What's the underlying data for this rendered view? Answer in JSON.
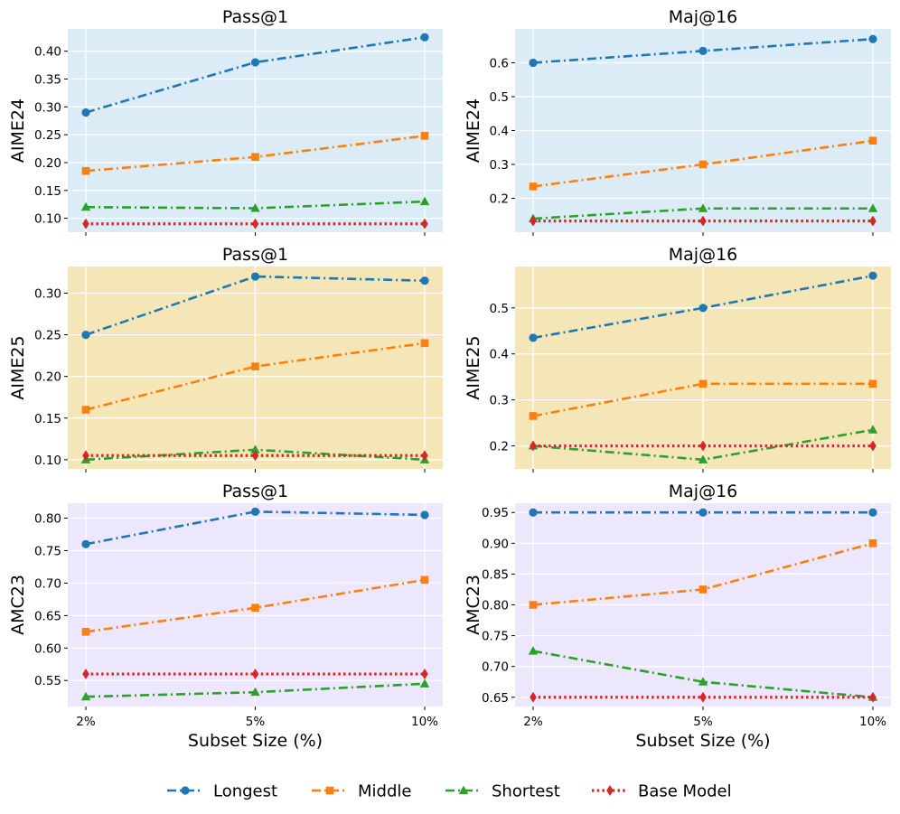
{
  "chart_data": {
    "type": "line",
    "x_categories": [
      "2%",
      "5%",
      "10%"
    ],
    "xlabel": "Subset Size (%)",
    "series_names": [
      "Longest",
      "Middle",
      "Shortest",
      "Base Model"
    ],
    "colors": {
      "Longest": "#1f77b4",
      "Middle": "#ff7f0e",
      "Shortest": "#2ca02c",
      "Base Model": "#d62728"
    },
    "markers": {
      "Longest": "circle",
      "Middle": "square",
      "Shortest": "triangle",
      "Base Model": "diamond"
    },
    "rows": [
      {
        "ylabel": "AIME24",
        "background": "#dbecf6"
      },
      {
        "ylabel": "AIME25",
        "background": "#f5e6b8"
      },
      {
        "ylabel": "AMC23",
        "background": "#ece7fd"
      }
    ],
    "panels": [
      {
        "title": "Pass@1",
        "ylabel": "AIME24",
        "ylim": [
          0.075,
          0.44
        ],
        "yticks": [
          0.1,
          0.15,
          0.2,
          0.25,
          0.3,
          0.35,
          0.4
        ],
        "ytick_labels": [
          "0.10",
          "0.15",
          "0.20",
          "0.25",
          "0.30",
          "0.35",
          "0.40"
        ],
        "series": [
          {
            "name": "Longest",
            "values": [
              0.29,
              0.38,
              0.425
            ]
          },
          {
            "name": "Middle",
            "values": [
              0.185,
              0.21,
              0.248
            ]
          },
          {
            "name": "Shortest",
            "values": [
              0.12,
              0.118,
              0.13
            ]
          },
          {
            "name": "Base Model",
            "values": [
              0.09,
              0.09,
              0.09
            ]
          }
        ]
      },
      {
        "title": "Maj@16",
        "ylabel": "AIME24",
        "ylim": [
          0.1,
          0.7
        ],
        "yticks": [
          0.2,
          0.3,
          0.4,
          0.5,
          0.6
        ],
        "ytick_labels": [
          "0.2",
          "0.3",
          "0.4",
          "0.5",
          "0.6"
        ],
        "series": [
          {
            "name": "Longest",
            "values": [
              0.6,
              0.635,
              0.67
            ]
          },
          {
            "name": "Middle",
            "values": [
              0.235,
              0.3,
              0.37
            ]
          },
          {
            "name": "Shortest",
            "values": [
              0.14,
              0.17,
              0.17
            ]
          },
          {
            "name": "Base Model",
            "values": [
              0.133,
              0.133,
              0.133
            ]
          }
        ]
      },
      {
        "title": "Pass@1",
        "ylabel": "AIME25",
        "ylim": [
          0.089,
          0.332
        ],
        "yticks": [
          0.1,
          0.15,
          0.2,
          0.25,
          0.3
        ],
        "ytick_labels": [
          "0.10",
          "0.15",
          "0.20",
          "0.25",
          "0.30"
        ],
        "series": [
          {
            "name": "Longest",
            "values": [
              0.25,
              0.32,
              0.315
            ]
          },
          {
            "name": "Middle",
            "values": [
              0.16,
              0.212,
              0.24
            ]
          },
          {
            "name": "Shortest",
            "values": [
              0.1,
              0.112,
              0.1
            ]
          },
          {
            "name": "Base Model",
            "values": [
              0.105,
              0.105,
              0.105
            ]
          }
        ]
      },
      {
        "title": "Maj@16",
        "ylabel": "AIME25",
        "ylim": [
          0.15,
          0.59
        ],
        "yticks": [
          0.2,
          0.3,
          0.4,
          0.5
        ],
        "ytick_labels": [
          "0.2",
          "0.3",
          "0.4",
          "0.5"
        ],
        "series": [
          {
            "name": "Longest",
            "values": [
              0.435,
              0.5,
              0.57
            ]
          },
          {
            "name": "Middle",
            "values": [
              0.265,
              0.335,
              0.335
            ]
          },
          {
            "name": "Shortest",
            "values": [
              0.2,
              0.17,
              0.235
            ]
          },
          {
            "name": "Base Model",
            "values": [
              0.2,
              0.2,
              0.2
            ]
          }
        ]
      },
      {
        "title": "Pass@1",
        "ylabel": "AMC23",
        "ylim": [
          0.51,
          0.823
        ],
        "yticks": [
          0.55,
          0.6,
          0.65,
          0.7,
          0.75,
          0.8
        ],
        "ytick_labels": [
          "0.55",
          "0.60",
          "0.65",
          "0.70",
          "0.75",
          "0.80"
        ],
        "series": [
          {
            "name": "Longest",
            "values": [
              0.76,
              0.81,
              0.805
            ]
          },
          {
            "name": "Middle",
            "values": [
              0.625,
              0.662,
              0.705
            ]
          },
          {
            "name": "Shortest",
            "values": [
              0.525,
              0.532,
              0.545
            ]
          },
          {
            "name": "Base Model",
            "values": [
              0.56,
              0.56,
              0.56
            ]
          }
        ]
      },
      {
        "title": "Maj@16",
        "ylabel": "AMC23",
        "ylim": [
          0.635,
          0.965
        ],
        "yticks": [
          0.65,
          0.7,
          0.75,
          0.8,
          0.85,
          0.9,
          0.95
        ],
        "ytick_labels": [
          "0.65",
          "0.70",
          "0.75",
          "0.80",
          "0.85",
          "0.90",
          "0.95"
        ],
        "series": [
          {
            "name": "Longest",
            "values": [
              0.95,
              0.95,
              0.95
            ]
          },
          {
            "name": "Middle",
            "values": [
              0.8,
              0.825,
              0.9
            ]
          },
          {
            "name": "Shortest",
            "values": [
              0.725,
              0.675,
              0.65
            ]
          },
          {
            "name": "Base Model",
            "values": [
              0.65,
              0.65,
              0.65
            ]
          }
        ]
      }
    ],
    "legend": {
      "placement": "bottom-center",
      "entries": [
        "Longest",
        "Middle",
        "Shortest",
        "Base Model"
      ]
    }
  }
}
